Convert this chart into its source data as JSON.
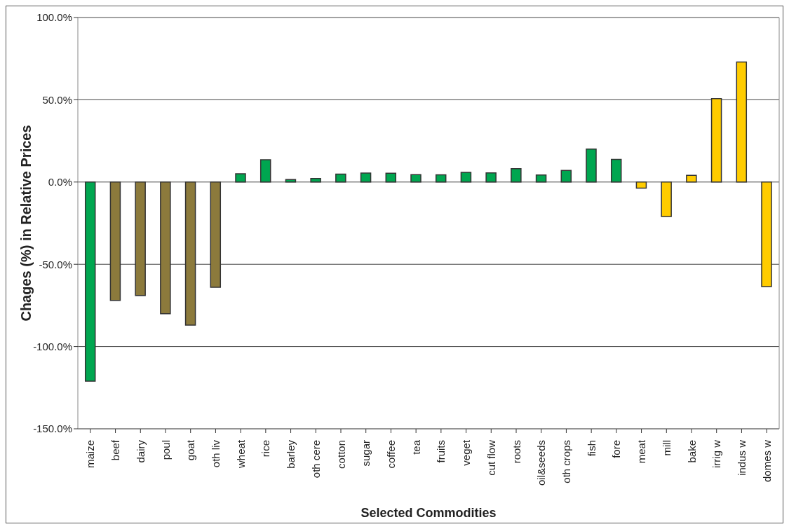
{
  "chart_data": {
    "type": "bar",
    "xlabel": "Selected Commodities",
    "ylabel": "Chages (%) in Relative Prices",
    "categories": [
      "maize",
      "beef",
      "dairy",
      "poul",
      "goat",
      "oth liv",
      "wheat",
      "rice",
      "barley",
      "oth cere",
      "cotton",
      "sugar",
      "coffee",
      "tea",
      "fruits",
      "veget",
      "cut flow",
      "roots",
      "oil&seeds",
      "oth crops",
      "fish",
      "fore",
      "meat",
      "mill",
      "bake",
      "irrig w",
      "indus w",
      "domes w"
    ],
    "values": [
      -121,
      -72,
      -69,
      -80,
      -87,
      -64,
      5,
      13.5,
      1.5,
      2.2,
      4.8,
      5.4,
      5.3,
      4.5,
      4.4,
      5.9,
      5.6,
      8.1,
      4.3,
      7.1,
      20,
      13.8,
      -3.7,
      -21,
      4.1,
      50.7,
      73,
      -63.5
    ],
    "colors": [
      "#00a650",
      "#8c7a3c",
      "#8c7a3c",
      "#8c7a3c",
      "#8c7a3c",
      "#8c7a3c",
      "#00a650",
      "#00a650",
      "#00a650",
      "#00a650",
      "#00a650",
      "#00a650",
      "#00a650",
      "#00a650",
      "#00a650",
      "#00a650",
      "#00a650",
      "#00a650",
      "#00a650",
      "#00a650",
      "#00a650",
      "#00a650",
      "#ffcc00",
      "#ffcc00",
      "#ffcc00",
      "#ffcc00",
      "#ffcc00",
      "#ffcc00"
    ],
    "ylim": [
      -150,
      100
    ],
    "yticks": [
      {
        "value": -150,
        "label": "-150.0%"
      },
      {
        "value": -100,
        "label": "-100.0%"
      },
      {
        "value": -50,
        "label": "-50.0%"
      },
      {
        "value": 0,
        "label": "0.0%"
      },
      {
        "value": 50,
        "label": "50.0%"
      },
      {
        "value": 100,
        "label": "100.0%"
      }
    ],
    "grid": "y",
    "legend": false
  }
}
